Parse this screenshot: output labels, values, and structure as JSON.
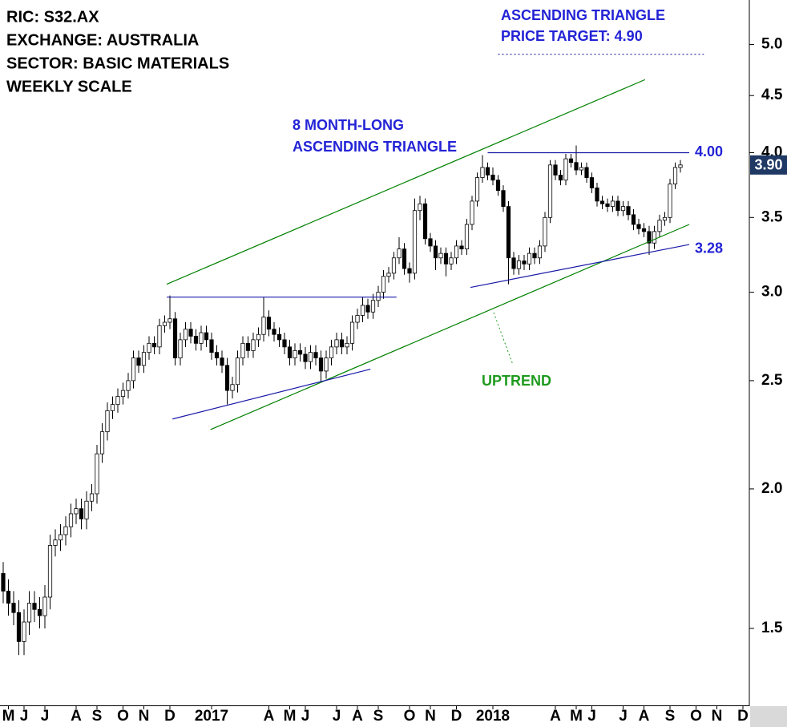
{
  "chart_data": {
    "type": "candlestick",
    "info": [
      "RIC: S32.AX",
      "EXCHANGE: AUSTRALIA",
      "SECTOR: BASIC MATERIALS",
      "WEEKLY SCALE"
    ],
    "annotations": [
      "ASCENDING TRIANGLE",
      "PRICE TARGET: 4.90",
      "8 MONTH-LONG",
      "ASCENDING TRIANGLE",
      "UPTREND"
    ],
    "log_scale": true,
    "ylim": [
      1.28,
      5.48
    ],
    "yticks": [
      1.5,
      {
        "value": 2,
        "label": "2.0"
      },
      2.5,
      {
        "value": 3,
        "label": "3.0"
      },
      3.5,
      {
        "value": 4,
        "label": "4.0"
      },
      4.5,
      {
        "value": 5,
        "label": "5.0"
      }
    ],
    "categories": [
      null,
      "M",
      null,
      null,
      "J",
      null,
      null,
      null,
      "J",
      null,
      null,
      null,
      null,
      null,
      "A",
      null,
      null,
      null,
      "S",
      null,
      null,
      null,
      null,
      "O",
      null,
      null,
      null,
      "N",
      null,
      null,
      null,
      null,
      "D",
      null,
      null,
      null,
      null,
      null,
      null,
      null,
      "2017",
      null,
      null,
      null,
      null,
      null,
      null,
      null,
      null,
      null,
      null,
      "A",
      null,
      null,
      null,
      "M",
      null,
      null,
      "J",
      null,
      null,
      null,
      null,
      null,
      "J",
      null,
      null,
      null,
      "A",
      null,
      null,
      null,
      "S",
      null,
      null,
      null,
      null,
      null,
      "O",
      null,
      null,
      null,
      "N",
      null,
      null,
      null,
      null,
      "D",
      null,
      null,
      null,
      null,
      null,
      null,
      "2018",
      null,
      null,
      null,
      null,
      null,
      null,
      null,
      null,
      null,
      null,
      null,
      "A",
      null,
      null,
      null,
      "M",
      null,
      null,
      "J",
      null,
      null,
      null,
      null,
      null,
      "J",
      null,
      null,
      null,
      "A",
      null,
      null,
      null,
      null,
      "S",
      null,
      null,
      null,
      null,
      "O",
      null,
      null,
      null,
      "N",
      null,
      null,
      null,
      null,
      "D",
      null
    ],
    "open": [
      1.68,
      1.62,
      1.58,
      1.55,
      1.46,
      1.52,
      1.58,
      1.56,
      1.54,
      1.6,
      1.78,
      1.8,
      1.82,
      1.85,
      1.9,
      1.92,
      1.88,
      1.95,
      1.98,
      2.15,
      2.25,
      2.35,
      2.38,
      2.42,
      2.45,
      2.5,
      2.62,
      2.58,
      2.65,
      2.7,
      2.68,
      2.8,
      2.82,
      2.84,
      2.62,
      2.72,
      2.78,
      2.74,
      2.7,
      2.76,
      2.72,
      2.65,
      2.62,
      2.58,
      2.45,
      2.48,
      2.62,
      2.7,
      2.66,
      2.72,
      2.75,
      2.85,
      2.78,
      2.75,
      2.72,
      2.68,
      2.62,
      2.66,
      2.64,
      2.6,
      2.65,
      2.62,
      2.55,
      2.62,
      2.68,
      2.72,
      2.68,
      2.7,
      2.82,
      2.86,
      2.92,
      2.88,
      2.95,
      3.0,
      3.1,
      3.12,
      3.22,
      3.28,
      3.15,
      3.12,
      3.55,
      3.6,
      3.35,
      3.3,
      3.22,
      3.25,
      3.18,
      3.22,
      3.3,
      3.28,
      3.45,
      3.62,
      3.8,
      3.88,
      3.82,
      3.78,
      3.7,
      3.58,
      3.22,
      3.15,
      3.2,
      3.18,
      3.25,
      3.22,
      3.3,
      3.5,
      3.9,
      3.82,
      3.78,
      3.95,
      3.92,
      3.86,
      3.88,
      3.8,
      3.72,
      3.62,
      3.6,
      3.58,
      3.62,
      3.55,
      3.58,
      3.52,
      3.45,
      3.42,
      3.4,
      3.32,
      3.4,
      3.48,
      3.5,
      3.75,
      3.88,
      null,
      null,
      null,
      null,
      null,
      null,
      null,
      null,
      null,
      null,
      null,
      null,
      null
    ],
    "high": [
      1.72,
      1.66,
      1.62,
      1.59,
      1.56,
      1.62,
      1.62,
      1.6,
      1.64,
      1.82,
      1.84,
      1.86,
      1.89,
      1.94,
      1.96,
      1.96,
      1.99,
      2.02,
      2.19,
      2.29,
      2.39,
      2.42,
      2.46,
      2.49,
      2.54,
      2.66,
      2.66,
      2.69,
      2.74,
      2.74,
      2.84,
      2.86,
      2.98,
      2.88,
      2.76,
      2.82,
      2.82,
      2.78,
      2.8,
      2.8,
      2.76,
      2.69,
      2.66,
      2.62,
      2.52,
      2.66,
      2.74,
      2.74,
      2.76,
      2.79,
      2.97,
      2.89,
      2.82,
      2.79,
      2.76,
      2.72,
      2.7,
      2.7,
      2.68,
      2.69,
      2.69,
      2.66,
      2.66,
      2.72,
      2.76,
      2.76,
      2.74,
      2.86,
      2.9,
      2.97,
      2.96,
      2.99,
      3.04,
      3.14,
      3.16,
      3.26,
      3.36,
      3.32,
      3.19,
      3.64,
      3.66,
      3.64,
      3.39,
      3.34,
      3.29,
      3.29,
      3.26,
      3.34,
      3.34,
      3.49,
      3.66,
      3.84,
      3.98,
      3.92,
      3.88,
      3.82,
      3.74,
      3.62,
      3.26,
      3.24,
      3.24,
      3.29,
      3.29,
      3.34,
      3.54,
      3.94,
      3.94,
      3.86,
      3.99,
      3.99,
      4.06,
      3.92,
      3.92,
      3.84,
      3.76,
      3.66,
      3.64,
      3.66,
      3.66,
      3.62,
      3.62,
      3.56,
      3.49,
      3.46,
      3.44,
      3.44,
      3.52,
      3.54,
      3.79,
      3.92,
      3.94,
      null,
      null,
      null,
      null,
      null,
      null,
      null,
      null,
      null,
      null,
      null,
      null,
      null
    ],
    "low": [
      1.58,
      1.54,
      1.51,
      1.42,
      1.42,
      1.48,
      1.52,
      1.5,
      1.5,
      1.56,
      1.74,
      1.76,
      1.78,
      1.81,
      1.86,
      1.84,
      1.84,
      1.91,
      1.94,
      2.11,
      2.21,
      2.31,
      2.34,
      2.38,
      2.41,
      2.46,
      2.54,
      2.54,
      2.61,
      2.64,
      2.64,
      2.76,
      2.78,
      2.58,
      2.58,
      2.68,
      2.7,
      2.66,
      2.66,
      2.68,
      2.61,
      2.58,
      2.54,
      2.38,
      2.41,
      2.44,
      2.58,
      2.62,
      2.62,
      2.68,
      2.71,
      2.74,
      2.71,
      2.68,
      2.64,
      2.58,
      2.58,
      2.6,
      2.56,
      2.56,
      2.58,
      2.49,
      2.51,
      2.58,
      2.64,
      2.64,
      2.64,
      2.66,
      2.78,
      2.82,
      2.84,
      2.84,
      2.91,
      2.96,
      3.06,
      3.08,
      3.18,
      3.11,
      3.06,
      3.08,
      3.48,
      3.31,
      3.26,
      3.14,
      3.18,
      3.1,
      3.14,
      3.18,
      3.24,
      3.24,
      3.41,
      3.58,
      3.76,
      3.78,
      3.74,
      3.66,
      3.54,
      3.05,
      3.11,
      3.11,
      3.14,
      3.14,
      3.18,
      3.18,
      3.26,
      3.46,
      3.78,
      3.74,
      3.74,
      3.88,
      3.82,
      3.82,
      3.76,
      3.68,
      3.58,
      3.56,
      3.54,
      3.54,
      3.51,
      3.51,
      3.48,
      3.41,
      3.38,
      3.36,
      3.24,
      3.28,
      3.36,
      3.44,
      3.46,
      3.71,
      3.84,
      null,
      null,
      null,
      null,
      null,
      null,
      null,
      null,
      null,
      null,
      null,
      null,
      null
    ],
    "close": [
      1.62,
      1.58,
      1.55,
      1.46,
      1.52,
      1.58,
      1.56,
      1.54,
      1.6,
      1.78,
      1.8,
      1.82,
      1.85,
      1.9,
      1.92,
      1.88,
      1.95,
      1.98,
      2.15,
      2.25,
      2.35,
      2.38,
      2.42,
      2.45,
      2.5,
      2.62,
      2.58,
      2.65,
      2.7,
      2.68,
      2.8,
      2.82,
      2.84,
      2.62,
      2.72,
      2.78,
      2.74,
      2.7,
      2.76,
      2.72,
      2.65,
      2.62,
      2.58,
      2.45,
      2.48,
      2.62,
      2.7,
      2.66,
      2.72,
      2.75,
      2.85,
      2.78,
      2.75,
      2.72,
      2.68,
      2.62,
      2.66,
      2.64,
      2.6,
      2.65,
      2.62,
      2.55,
      2.62,
      2.68,
      2.72,
      2.68,
      2.7,
      2.82,
      2.86,
      2.92,
      2.88,
      2.95,
      3.0,
      3.1,
      3.12,
      3.22,
      3.28,
      3.15,
      3.12,
      3.55,
      3.6,
      3.35,
      3.3,
      3.22,
      3.25,
      3.18,
      3.22,
      3.3,
      3.28,
      3.45,
      3.62,
      3.8,
      3.88,
      3.82,
      3.78,
      3.7,
      3.58,
      3.22,
      3.15,
      3.2,
      3.18,
      3.25,
      3.22,
      3.3,
      3.5,
      3.9,
      3.82,
      3.78,
      3.95,
      3.92,
      3.86,
      3.88,
      3.8,
      3.72,
      3.62,
      3.6,
      3.58,
      3.62,
      3.55,
      3.58,
      3.52,
      3.45,
      3.42,
      3.4,
      3.32,
      3.4,
      3.48,
      3.5,
      3.75,
      3.88,
      3.9,
      null,
      null,
      null,
      null,
      null,
      null,
      null,
      null,
      null,
      null,
      null,
      null,
      null
    ],
    "trendlines": [
      {
        "color": "#008000",
        "x": [
          31.4,
          123.2
        ],
        "y": [
          3.05,
          4.65
        ]
      },
      {
        "color": "#008000",
        "x": [
          39.8,
          131.7
        ],
        "y": [
          2.26,
          3.45
        ]
      },
      {
        "color": "#1a1aa8",
        "x": [
          31.4,
          75.5
        ],
        "y": [
          2.97,
          2.97
        ]
      },
      {
        "color": "#1a1aa8",
        "x": [
          32.5,
          70.5
        ],
        "y": [
          2.31,
          2.56
        ]
      },
      {
        "color": "#1a1aa8",
        "x": [
          93,
          131.7
        ],
        "y": [
          4,
          4
        ]
      },
      {
        "color": "#1a1aa8",
        "x": [
          89.7,
          131.7
        ],
        "y": [
          3.03,
          3.31
        ]
      },
      {
        "color": "#1a1aa8",
        "x": [
          95,
          134.5
        ],
        "y": [
          4.9,
          4.9
        ],
        "dashed": true
      }
    ],
    "levels": [
      {
        "value": 4,
        "label": "4.00"
      },
      3.28
    ],
    "last_price": {
      "value": 3.9,
      "label": "3.90"
    }
  }
}
